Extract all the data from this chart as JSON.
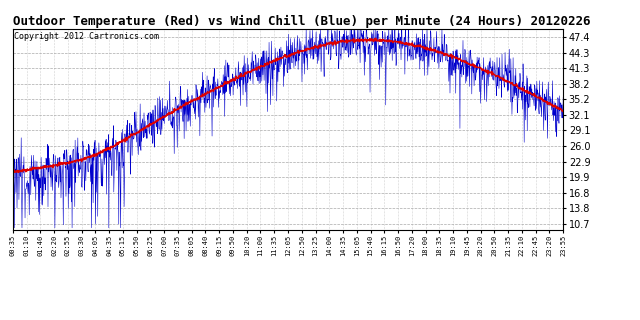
{
  "title": "Outdoor Temperature (Red) vs Wind Chill (Blue) per Minute (24 Hours) 20120226",
  "copyright": "Copyright 2012 Cartronics.com",
  "yticks": [
    10.7,
    13.8,
    16.8,
    19.9,
    22.9,
    26.0,
    29.1,
    32.1,
    35.2,
    38.2,
    41.3,
    44.3,
    47.4
  ],
  "ylim": [
    9.5,
    49.0
  ],
  "xlim": [
    0,
    1440
  ],
  "bg_color": "#ffffff",
  "grid_color": "#aaaaaa",
  "temp_color": "#dd0000",
  "wind_color": "#0000cc",
  "title_fontsize": 9,
  "copyright_fontsize": 6,
  "xtick_labels": [
    "00:35",
    "01:10",
    "01:40",
    "02:20",
    "02:55",
    "03:30",
    "04:05",
    "04:35",
    "05:15",
    "05:50",
    "06:25",
    "07:00",
    "07:35",
    "08:05",
    "08:40",
    "09:15",
    "09:50",
    "10:20",
    "11:00",
    "11:35",
    "12:05",
    "12:50",
    "13:25",
    "14:00",
    "14:35",
    "15:05",
    "15:40",
    "16:15",
    "16:50",
    "17:20",
    "18:00",
    "18:35",
    "19:10",
    "19:45",
    "20:20",
    "20:50",
    "21:35",
    "22:10",
    "22:45",
    "23:20",
    "23:55"
  ]
}
